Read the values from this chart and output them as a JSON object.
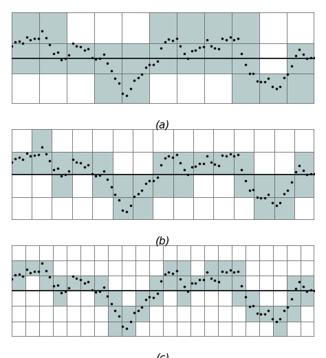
{
  "title_a": "(a)",
  "title_b": "(b)",
  "title_c": "(c)",
  "bg_color": "#ffffff",
  "shaded_color": "#b8cccc",
  "grid_color": "#666666",
  "dot_color": "#111111",
  "dot_size": 7,
  "panels": [
    {
      "ncols": 11,
      "nrows": 3,
      "label": "(a)"
    },
    {
      "ncols": 15,
      "nrows": 4,
      "label": "(b)"
    },
    {
      "ncols": 22,
      "nrows": 6,
      "label": "(c)"
    }
  ],
  "signal_amp": 0.82,
  "n_points": 80
}
